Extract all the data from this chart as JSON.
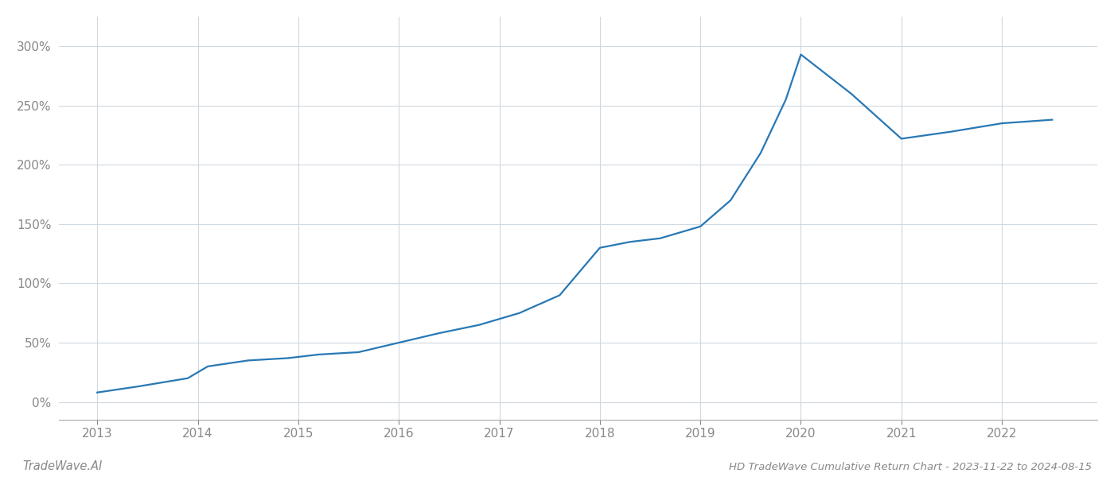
{
  "x_values": [
    2013.0,
    2013.4,
    2013.9,
    2014.1,
    2014.5,
    2014.9,
    2015.2,
    2015.6,
    2016.0,
    2016.4,
    2016.8,
    2017.2,
    2017.6,
    2018.0,
    2018.3,
    2018.6,
    2019.0,
    2019.3,
    2019.6,
    2019.85,
    2020.0,
    2020.5,
    2021.0,
    2021.5,
    2022.0,
    2022.5
  ],
  "y_values": [
    8,
    13,
    20,
    30,
    35,
    37,
    40,
    42,
    50,
    58,
    65,
    75,
    90,
    130,
    135,
    138,
    148,
    170,
    210,
    255,
    293,
    260,
    222,
    228,
    235,
    238
  ],
  "line_color": "#2878b5",
  "line_width": 1.6,
  "title": "HD TradeWave Cumulative Return Chart - 2023-11-22 to 2024-08-15",
  "watermark": "TradeWave.AI",
  "background_color": "#ffffff",
  "grid_color": "#d0d8e0",
  "axis_color": "#888888",
  "x_ticks": [
    2013,
    2014,
    2015,
    2016,
    2017,
    2018,
    2019,
    2020,
    2021,
    2022
  ],
  "y_ticks": [
    0,
    50,
    100,
    150,
    200,
    250,
    300
  ],
  "y_labels": [
    "0%",
    "50%",
    "100%",
    "150%",
    "200%",
    "250%",
    "300%"
  ],
  "xlim": [
    2012.62,
    2022.95
  ],
  "ylim": [
    -15,
    325
  ]
}
